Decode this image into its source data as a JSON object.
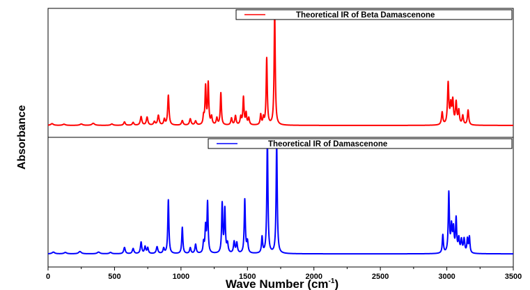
{
  "chart_data": {
    "type": "line",
    "xlabel": "Wave Number (cm",
    "xlabel_sup": "-1",
    "xlabel_end": ")",
    "ylabel": "Absorbance",
    "xlim": [
      0,
      3500
    ],
    "x_ticks": [
      0,
      500,
      1000,
      1500,
      2000,
      2500,
      3000,
      3500
    ],
    "x_tick_labels": [
      "0",
      "500",
      "1000",
      "1500",
      "2000",
      "2500",
      "3000",
      "3500"
    ],
    "grid": false,
    "legend_position": "top-right",
    "panels": [
      {
        "position": "top",
        "series": [
          {
            "name": "Theoretical IR of Beta Damascenone",
            "color": "#ff0000",
            "baseline": 0.03,
            "peaks": [
              [
                30,
                0.015,
                12
              ],
              [
                120,
                0.01,
                12
              ],
              [
                250,
                0.012,
                12
              ],
              [
                340,
                0.018,
                12
              ],
              [
                480,
                0.012,
                10
              ],
              [
                575,
                0.03,
                7
              ],
              [
                640,
                0.025,
                7
              ],
              [
                700,
                0.075,
                7
              ],
              [
                745,
                0.07,
                7
              ],
              [
                800,
                0.03,
                7
              ],
              [
                830,
                0.085,
                7
              ],
              [
                875,
                0.05,
                6
              ],
              [
                905,
                0.26,
                6
              ],
              [
                1010,
                0.04,
                7
              ],
              [
                1070,
                0.055,
                7
              ],
              [
                1110,
                0.035,
                7
              ],
              [
                1170,
                0.07,
                5
              ],
              [
                1185,
                0.33,
                5
              ],
              [
                1205,
                0.36,
                5
              ],
              [
                1230,
                0.07,
                6
              ],
              [
                1270,
                0.06,
                6
              ],
              [
                1300,
                0.28,
                5
              ],
              [
                1380,
                0.06,
                6
              ],
              [
                1410,
                0.08,
                6
              ],
              [
                1450,
                0.07,
                6
              ],
              [
                1470,
                0.24,
                5
              ],
              [
                1490,
                0.1,
                5
              ],
              [
                1510,
                0.06,
                6
              ],
              [
                1600,
                0.09,
                5
              ],
              [
                1620,
                0.06,
                5
              ],
              [
                1645,
                0.58,
                5
              ],
              [
                1705,
                1.0,
                5
              ],
              [
                2965,
                0.11,
                6
              ],
              [
                3010,
                0.36,
                6
              ],
              [
                3030,
                0.16,
                6
              ],
              [
                3045,
                0.2,
                6
              ],
              [
                3070,
                0.19,
                6
              ],
              [
                3090,
                0.12,
                6
              ],
              [
                3120,
                0.08,
                6
              ],
              [
                3160,
                0.13,
                6
              ]
            ]
          }
        ]
      },
      {
        "position": "bottom",
        "series": [
          {
            "name": "Theoretical IR of Damascenone",
            "color": "#0000ff",
            "baseline": 0.04,
            "peaks": [
              [
                40,
                0.015,
                12
              ],
              [
                130,
                0.012,
                12
              ],
              [
                240,
                0.02,
                12
              ],
              [
                380,
                0.015,
                12
              ],
              [
                470,
                0.012,
                10
              ],
              [
                575,
                0.055,
                7
              ],
              [
                640,
                0.045,
                7
              ],
              [
                700,
                0.1,
                6
              ],
              [
                730,
                0.06,
                6
              ],
              [
                750,
                0.05,
                6
              ],
              [
                820,
                0.06,
                7
              ],
              [
                870,
                0.045,
                6
              ],
              [
                905,
                0.47,
                5
              ],
              [
                1010,
                0.23,
                5
              ],
              [
                1070,
                0.05,
                6
              ],
              [
                1110,
                0.08,
                6
              ],
              [
                1170,
                0.09,
                5
              ],
              [
                1185,
                0.22,
                5
              ],
              [
                1200,
                0.44,
                5
              ],
              [
                1310,
                0.43,
                5
              ],
              [
                1330,
                0.38,
                5
              ],
              [
                1350,
                0.08,
                6
              ],
              [
                1400,
                0.1,
                6
              ],
              [
                1420,
                0.09,
                6
              ],
              [
                1480,
                0.47,
                5
              ],
              [
                1500,
                0.1,
                6
              ],
              [
                1610,
                0.14,
                5
              ],
              [
                1650,
                1.0,
                5
              ],
              [
                1720,
                0.97,
                5
              ],
              [
                2970,
                0.16,
                5
              ],
              [
                3015,
                0.52,
                5
              ],
              [
                3035,
                0.22,
                6
              ],
              [
                3050,
                0.2,
                6
              ],
              [
                3070,
                0.29,
                5
              ],
              [
                3090,
                0.12,
                6
              ],
              [
                3110,
                0.11,
                6
              ],
              [
                3130,
                0.12,
                6
              ],
              [
                3155,
                0.12,
                5
              ],
              [
                3170,
                0.14,
                5
              ]
            ]
          }
        ]
      }
    ]
  }
}
